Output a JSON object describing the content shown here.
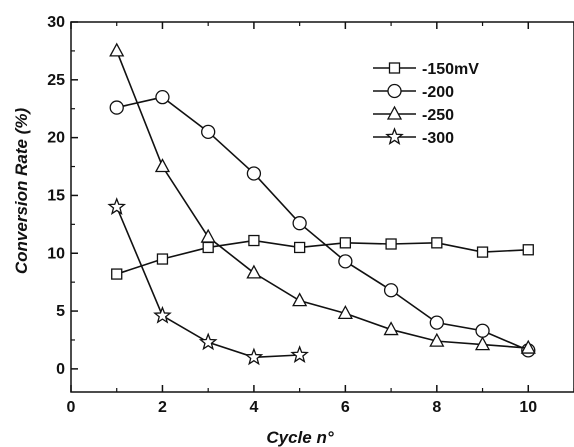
{
  "chart_data": {
    "type": "line",
    "title": "",
    "xlabel": "Cycle n°",
    "ylabel": "Conversion Rate (%)",
    "xlim": [
      0,
      11
    ],
    "ylim": [
      -2,
      30
    ],
    "xticks": [
      0,
      2,
      4,
      6,
      8,
      10
    ],
    "yticks": [
      0,
      5,
      10,
      15,
      20,
      25,
      30
    ],
    "grid": false,
    "legend_position": "top-right",
    "series": [
      {
        "name": "-150mV",
        "marker": "square",
        "x": [
          1,
          2,
          3,
          4,
          5,
          6,
          7,
          8,
          9,
          10
        ],
        "y": [
          8.2,
          9.5,
          10.5,
          11.1,
          10.5,
          10.9,
          10.8,
          10.9,
          10.1,
          10.3
        ]
      },
      {
        "name": "-200",
        "marker": "circle",
        "x": [
          1,
          2,
          3,
          4,
          5,
          6,
          7,
          8,
          9,
          10
        ],
        "y": [
          22.6,
          23.5,
          20.5,
          16.9,
          12.6,
          9.3,
          6.8,
          4.0,
          3.3,
          1.6
        ]
      },
      {
        "name": "-250",
        "marker": "triangle",
        "x": [
          1,
          2,
          3,
          4,
          5,
          6,
          7,
          8,
          9,
          10
        ],
        "y": [
          27.5,
          17.5,
          11.4,
          8.3,
          5.9,
          4.8,
          3.4,
          2.4,
          2.1,
          1.8
        ]
      },
      {
        "name": "-300",
        "marker": "star",
        "x": [
          1,
          2,
          3,
          4,
          5
        ],
        "y": [
          14.0,
          4.6,
          2.3,
          1.0,
          1.2
        ]
      }
    ]
  }
}
